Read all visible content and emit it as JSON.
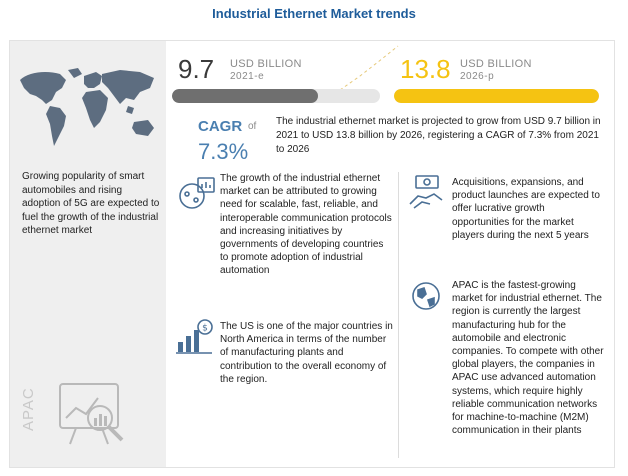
{
  "title": "Industrial Ethernet Market trends",
  "left_panel": {
    "description": "Growing popularity of smart automobiles and rising adoption of 5G are expected to fuel the growth of the industrial ethernet market",
    "region_label": "APAC",
    "map_icon": "world-map-icon",
    "analytics_icon": "magnifier-chart-icon"
  },
  "metrics": {
    "start": {
      "value": "9.7",
      "unit": "USD BILLION",
      "year": "2021-e",
      "share": 0.7,
      "bar_color": "#6f6f6f"
    },
    "end": {
      "value": "13.8",
      "unit": "USD BILLION",
      "year": "2026-p",
      "share": 1.0,
      "bar_color": "#f5c312",
      "value_color": "#f5c312"
    }
  },
  "cagr": {
    "label": "CAGR",
    "of_text": "of",
    "value": "7.3%"
  },
  "summary": "The industrial ethernet market is projected to grow from USD 9.7 billion in 2021 to USD 13.8 billion by 2026, registering a CAGR of 7.3% from 2021 to 2026",
  "insights": [
    {
      "icon": "network-protocol-icon",
      "text": "The growth of the industrial ethernet market can be attributed to growing need for scalable, fast, reliable, and interoperable communication protocols and increasing initiatives by governments of developing countries to promote adoption of industrial automation"
    },
    {
      "icon": "money-growth-icon",
      "text": "The US is one of the major countries in North America in terms of the number of manufacturing plants and contribution to the overall economy of the region."
    },
    {
      "icon": "handshake-money-icon",
      "text": "Acquisitions, expansions, and product launches are expected to offer lucrative growth opportunities for the market players during the next 5 years"
    },
    {
      "icon": "globe-pin-icon",
      "text": "APAC is the fastest-growing market for industrial ethernet. The region is currently the largest manufacturing hub for the automobile and electronic companies. To compete with other global players, the companies in APAC use advanced automation systems, which require highly reliable communication networks for machine-to-machine (M2M) communication in their plants"
    }
  ]
}
